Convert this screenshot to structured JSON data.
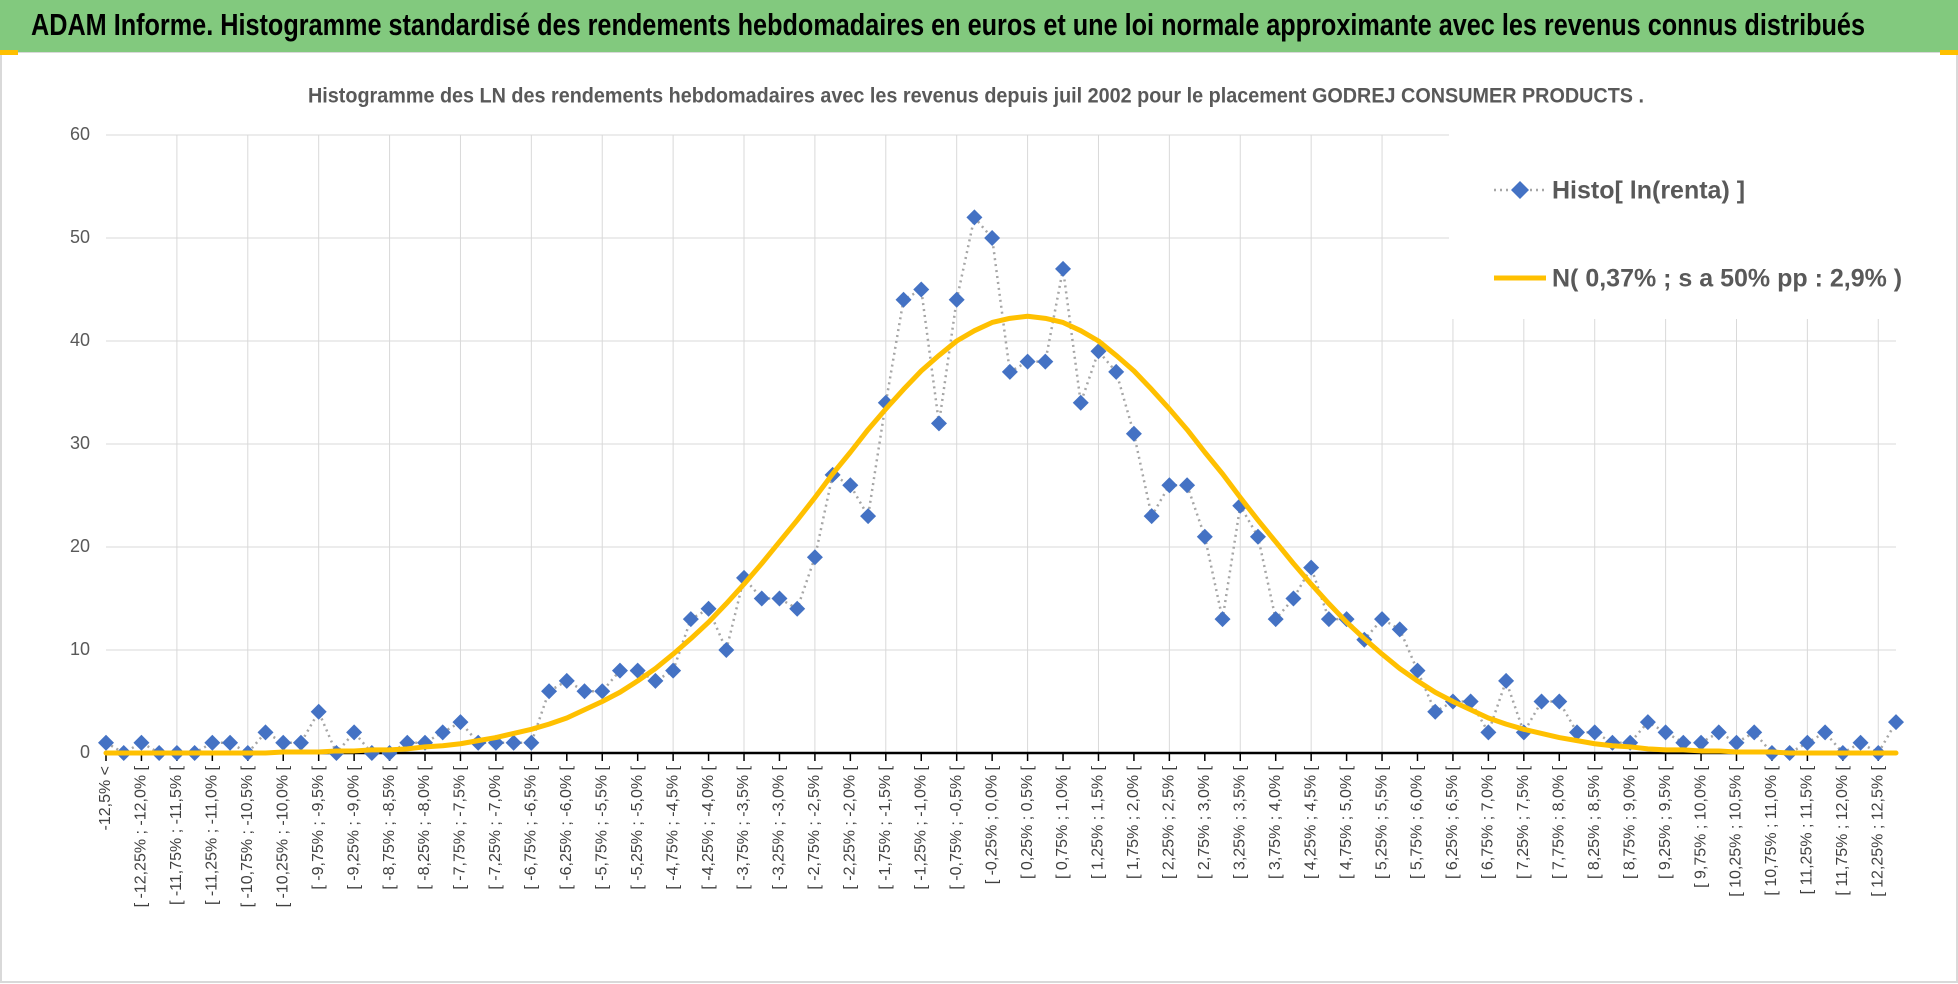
{
  "chart_data": {
    "type": "line",
    "title": "ADAM Informe. Histogramme standardisé des rendements hebdomadaires en euros et une loi normale approximante avec les revenus connus distribués",
    "subtitle": "Histogramme des LN des rendements hebdomadaires avec les revenus depuis juil 2002 pour le placement GODREJ CONSUMER PRODUCTS .",
    "categories": [
      "-12,5% <",
      null,
      "[ -12,25% ; -12,0% [",
      null,
      "[ -11,75% ; -11,5% [",
      null,
      "[ -11,25% ; -11,0% [",
      null,
      "[ -10,75% ; -10,5% [",
      null,
      "[ -10,25% ; -10,0% [",
      null,
      "[ -9,75% ; -9,5% [",
      null,
      "[ -9,25% ; -9,0% [",
      null,
      "[ -8,75% ; -8,5% [",
      null,
      "[ -8,25% ; -8,0% [",
      null,
      "[ -7,75% ; -7,5% [",
      null,
      "[ -7,25% ; -7,0% [",
      null,
      "[ -6,75% ; -6,5% [",
      null,
      "[ -6,25% ; -6,0% [",
      null,
      "[ -5,75% ; -5,5% [",
      null,
      "[ -5,25% ; -5,0% [",
      null,
      "[ -4,75% ; -4,5% [",
      null,
      "[ -4,25% ; -4,0% [",
      null,
      "[ -3,75% ; -3,5% [",
      null,
      "[ -3,25% ; -3,0% [",
      null,
      "[ -2,75% ; -2,5% [",
      null,
      "[ -2,25% ; -2,0% [",
      null,
      "[ -1,75% ; -1,5% [",
      null,
      "[ -1,25% ; -1,0% [",
      null,
      "[ -0,75% ; -0,5% [",
      null,
      "[ -0,25% ; 0,0% [",
      null,
      "[ 0,25% ; 0,5% [",
      null,
      "[ 0,75% ; 1,0% [",
      null,
      "[ 1,25% ; 1,5% [",
      null,
      "[ 1,75% ; 2,0% [",
      null,
      "[ 2,25% ; 2,5% [",
      null,
      "[ 2,75% ; 3,0% [",
      null,
      "[ 3,25% ; 3,5% [",
      null,
      "[ 3,75% ; 4,0% [",
      null,
      "[ 4,25% ; 4,5% [",
      null,
      "[ 4,75% ; 5,0% [",
      null,
      "[ 5,25% ; 5,5% [",
      null,
      "[ 5,75% ; 6,0% [",
      null,
      "[ 6,25% ; 6,5% [",
      null,
      "[ 6,75% ; 7,0% [",
      null,
      "[ 7,25% ; 7,5% [",
      null,
      "[ 7,75% ; 8,0% [",
      null,
      "[ 8,25% ; 8,5% [",
      null,
      "[ 8,75% ; 9,0% [",
      null,
      "[ 9,25% ; 9,5% [",
      null,
      "[ 9,75% ; 10,0% [",
      null,
      "[ 10,25% ; 10,5% [",
      null,
      "[ 10,75% ; 11,0% [",
      null,
      "[ 11,25% ; 11,5% [",
      null,
      "[ 11,75% ; 12,0% [",
      null,
      "[ 12,25% ; 12,5% [",
      null
    ],
    "series": [
      {
        "name": "Histo[ ln(renta) ]",
        "color": "#4472c4",
        "line_color": "#a6a6a6",
        "line_style": "dotted",
        "marker": "diamond",
        "values": [
          1,
          0,
          1,
          0,
          0,
          0,
          1,
          1,
          0,
          2,
          1,
          1,
          4,
          0,
          2,
          0,
          0,
          1,
          1,
          2,
          3,
          1,
          1,
          1,
          1,
          6,
          7,
          6,
          6,
          8,
          8,
          7,
          8,
          13,
          14,
          10,
          17,
          15,
          15,
          14,
          19,
          27,
          26,
          23,
          34,
          44,
          45,
          32,
          44,
          52,
          50,
          37,
          38,
          38,
          47,
          34,
          39,
          37,
          31,
          23,
          26,
          26,
          21,
          13,
          24,
          21,
          13,
          15,
          18,
          13,
          13,
          11,
          13,
          12,
          8,
          4,
          5,
          5,
          2,
          7,
          2,
          5,
          5,
          2,
          2,
          1,
          1,
          3,
          2,
          1,
          1,
          2,
          1,
          2,
          0,
          0,
          1,
          2,
          0,
          1,
          0,
          3
        ]
      },
      {
        "name": "N( 0,37% ; s a 50% pp : 2,9% )",
        "color": "#ffc000",
        "line_style": "solid",
        "marker": "none",
        "values": [
          0,
          0,
          0,
          0,
          0,
          0,
          0,
          0,
          0,
          0,
          0.1,
          0.1,
          0.1,
          0.2,
          0.2,
          0.3,
          0.3,
          0.4,
          0.6,
          0.7,
          0.9,
          1.2,
          1.5,
          1.9,
          2.3,
          2.8,
          3.4,
          4.2,
          5.0,
          5.9,
          7.0,
          8.2,
          9.6,
          11.1,
          12.7,
          14.5,
          16.4,
          18.4,
          20.5,
          22.6,
          24.8,
          27.1,
          29.2,
          31.4,
          33.4,
          35.3,
          37.1,
          38.6,
          40.0,
          41.0,
          41.8,
          42.2,
          42.4,
          42.2,
          41.8,
          41.0,
          40.0,
          38.6,
          37.1,
          35.3,
          33.4,
          31.4,
          29.2,
          27.1,
          24.8,
          22.6,
          20.5,
          18.4,
          16.4,
          14.5,
          12.7,
          11.1,
          9.6,
          8.2,
          7.0,
          5.9,
          5.0,
          4.2,
          3.4,
          2.8,
          2.3,
          1.9,
          1.5,
          1.2,
          0.9,
          0.7,
          0.6,
          0.4,
          0.3,
          0.3,
          0.2,
          0.2,
          0.1,
          0.1,
          0.1,
          0,
          0,
          0,
          0,
          0,
          0,
          0
        ]
      }
    ],
    "ylim": [
      0,
      60
    ],
    "yticks": [
      0,
      10,
      20,
      30,
      40,
      50,
      60
    ],
    "grid": true,
    "legend": "upper right"
  }
}
